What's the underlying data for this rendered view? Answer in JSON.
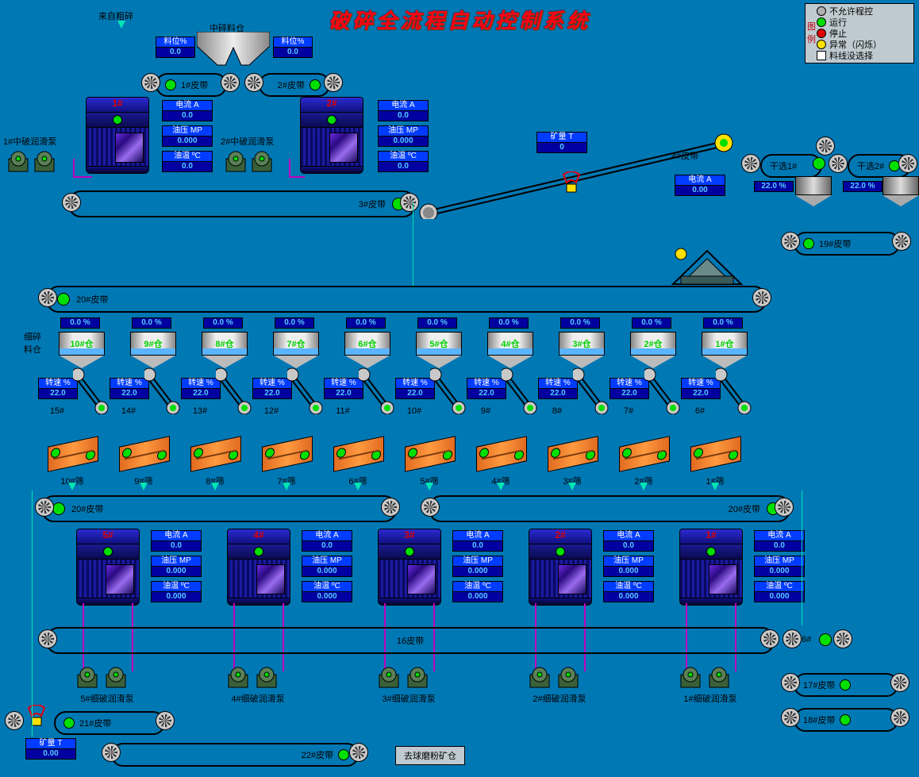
{
  "title": "破碎全流程自动控制系统",
  "legend": {
    "items": [
      {
        "color": "#b0b0b0",
        "label": "不允许程控"
      },
      {
        "color": "#00e000",
        "label": "运行"
      },
      {
        "color": "#e00000",
        "label": "停止"
      },
      {
        "color": "#ffe000",
        "label": "异常（闪烁）"
      },
      {
        "shape": "square",
        "label": "料线没选择"
      }
    ]
  },
  "top": {
    "source_label": "来自粗碎",
    "midbin_label": "中碎料仓",
    "level_l": {
      "head": "料位%",
      "val": "0.0"
    },
    "level_r": {
      "head": "料位%",
      "val": "0.0"
    },
    "belt1": "1#皮带",
    "belt2": "2#皮带",
    "crusher1": {
      "tag": "1#",
      "cur": {
        "h": "电流  A",
        "v": "0.0"
      },
      "oilp": {
        "h": "油压  MP",
        "v": "0.000"
      },
      "oilt": {
        "h": "油温  ºC",
        "v": "0.0"
      },
      "pump": "1#中破润滑泵"
    },
    "crusher2": {
      "tag": "2#",
      "cur": {
        "h": "电流  A",
        "v": "0.0"
      },
      "oilp": {
        "h": "油压  MP",
        "v": "0.000"
      },
      "oilt": {
        "h": "油温  ºC",
        "v": "0.0"
      },
      "pump": "2#中破润滑泵"
    },
    "belt3": "3#皮带",
    "oreT": {
      "h": "矿量   T",
      "v": "0"
    },
    "belt4": "4#皮带",
    "cur4": {
      "h": "电流  A",
      "v": "0.00"
    },
    "drysel1": "干选1#",
    "drysel2": "干选2#",
    "dry1": {
      "v": "22.0",
      "u": "%"
    },
    "dry2": {
      "v": "22.0",
      "u": "%"
    },
    "belt19": "19#皮带"
  },
  "belt20": "20#皮带",
  "fine_label": "细碎\n料仓",
  "bins": [
    {
      "tag": "10#仓",
      "pct": "0.0",
      "unit": "%"
    },
    {
      "tag": "9#仓",
      "pct": "0.0",
      "unit": "%"
    },
    {
      "tag": "8#仓",
      "pct": "0.0",
      "unit": "%"
    },
    {
      "tag": "7#仓",
      "pct": "0.0",
      "unit": "%"
    },
    {
      "tag": "6#仓",
      "pct": "0.0",
      "unit": "%"
    },
    {
      "tag": "5#仓",
      "pct": "0.0",
      "unit": "%"
    },
    {
      "tag": "4#仓",
      "pct": "0.0",
      "unit": "%"
    },
    {
      "tag": "3#仓",
      "pct": "0.0",
      "unit": "%"
    },
    {
      "tag": "2#仓",
      "pct": "0.0",
      "unit": "%"
    },
    {
      "tag": "1#仓",
      "pct": "0.0",
      "unit": "%"
    }
  ],
  "feeders": [
    {
      "tag": "15#",
      "spd": "22.0"
    },
    {
      "tag": "14#",
      "spd": "22.0"
    },
    {
      "tag": "13#",
      "spd": "22.0"
    },
    {
      "tag": "12#",
      "spd": "22.0"
    },
    {
      "tag": "11#",
      "spd": "22.0"
    },
    {
      "tag": "10#",
      "spd": "22.0"
    },
    {
      "tag": "9#",
      "spd": "22.0"
    },
    {
      "tag": "8#",
      "spd": "22.0"
    },
    {
      "tag": "7#",
      "spd": "22.0"
    },
    {
      "tag": "6#",
      "spd": "22.0"
    }
  ],
  "feeder_head": "转速 %",
  "screens": [
    "10#筛",
    "9#筛",
    "8#筛",
    "7#筛",
    "6#筛",
    "5#筛",
    "4#筛",
    "3#筛",
    "2#筛",
    "1#筛"
  ],
  "belt20_lower_l": "20#皮带",
  "belt20_lower_r": "20#皮带",
  "fine_crushers": [
    {
      "tag": "5#",
      "cur": "0.0",
      "oilp": "0.000",
      "oilt": "0.000",
      "pump": "5#细破润滑泵"
    },
    {
      "tag": "4#",
      "cur": "0.0",
      "oilp": "0.000",
      "oilt": "0.000",
      "pump": "4#细破润滑泵"
    },
    {
      "tag": "3#",
      "cur": "0.0",
      "oilp": "0.000",
      "oilt": "0.000",
      "pump": "3#细破润滑泵"
    },
    {
      "tag": "2#",
      "cur": "0.0",
      "oilp": "0.000",
      "oilt": "0.000",
      "pump": "2#细破润滑泵"
    },
    {
      "tag": "1#",
      "cur": "0.0",
      "oilp": "0.000",
      "oilt": "0.000",
      "pump": "1#细破润滑泵"
    }
  ],
  "fc_h": {
    "cur": "电流  A",
    "oilp": "油压  MP",
    "oilt": "油温  ºC"
  },
  "belt16": "16皮带",
  "belt16r": "16#",
  "belt17": "17#皮带",
  "belt18": "18#皮带",
  "belt21": "21#皮带",
  "belt22": "22#皮带",
  "oreT2": {
    "h": "矿量   T",
    "v": "0.00"
  },
  "dest": "去球磨粉矿仓",
  "colors": {
    "bg": "#0078b4",
    "accent": "#003cff",
    "val": "#5ccfff",
    "run": "#00e000",
    "stop": "#e00000",
    "warn": "#ffe000",
    "dis": "#b0b0b0",
    "orange": "#ee7a2a",
    "steel": "#bdbdbd",
    "pipe": "#c000c0",
    "flow": "#00e5b4"
  }
}
